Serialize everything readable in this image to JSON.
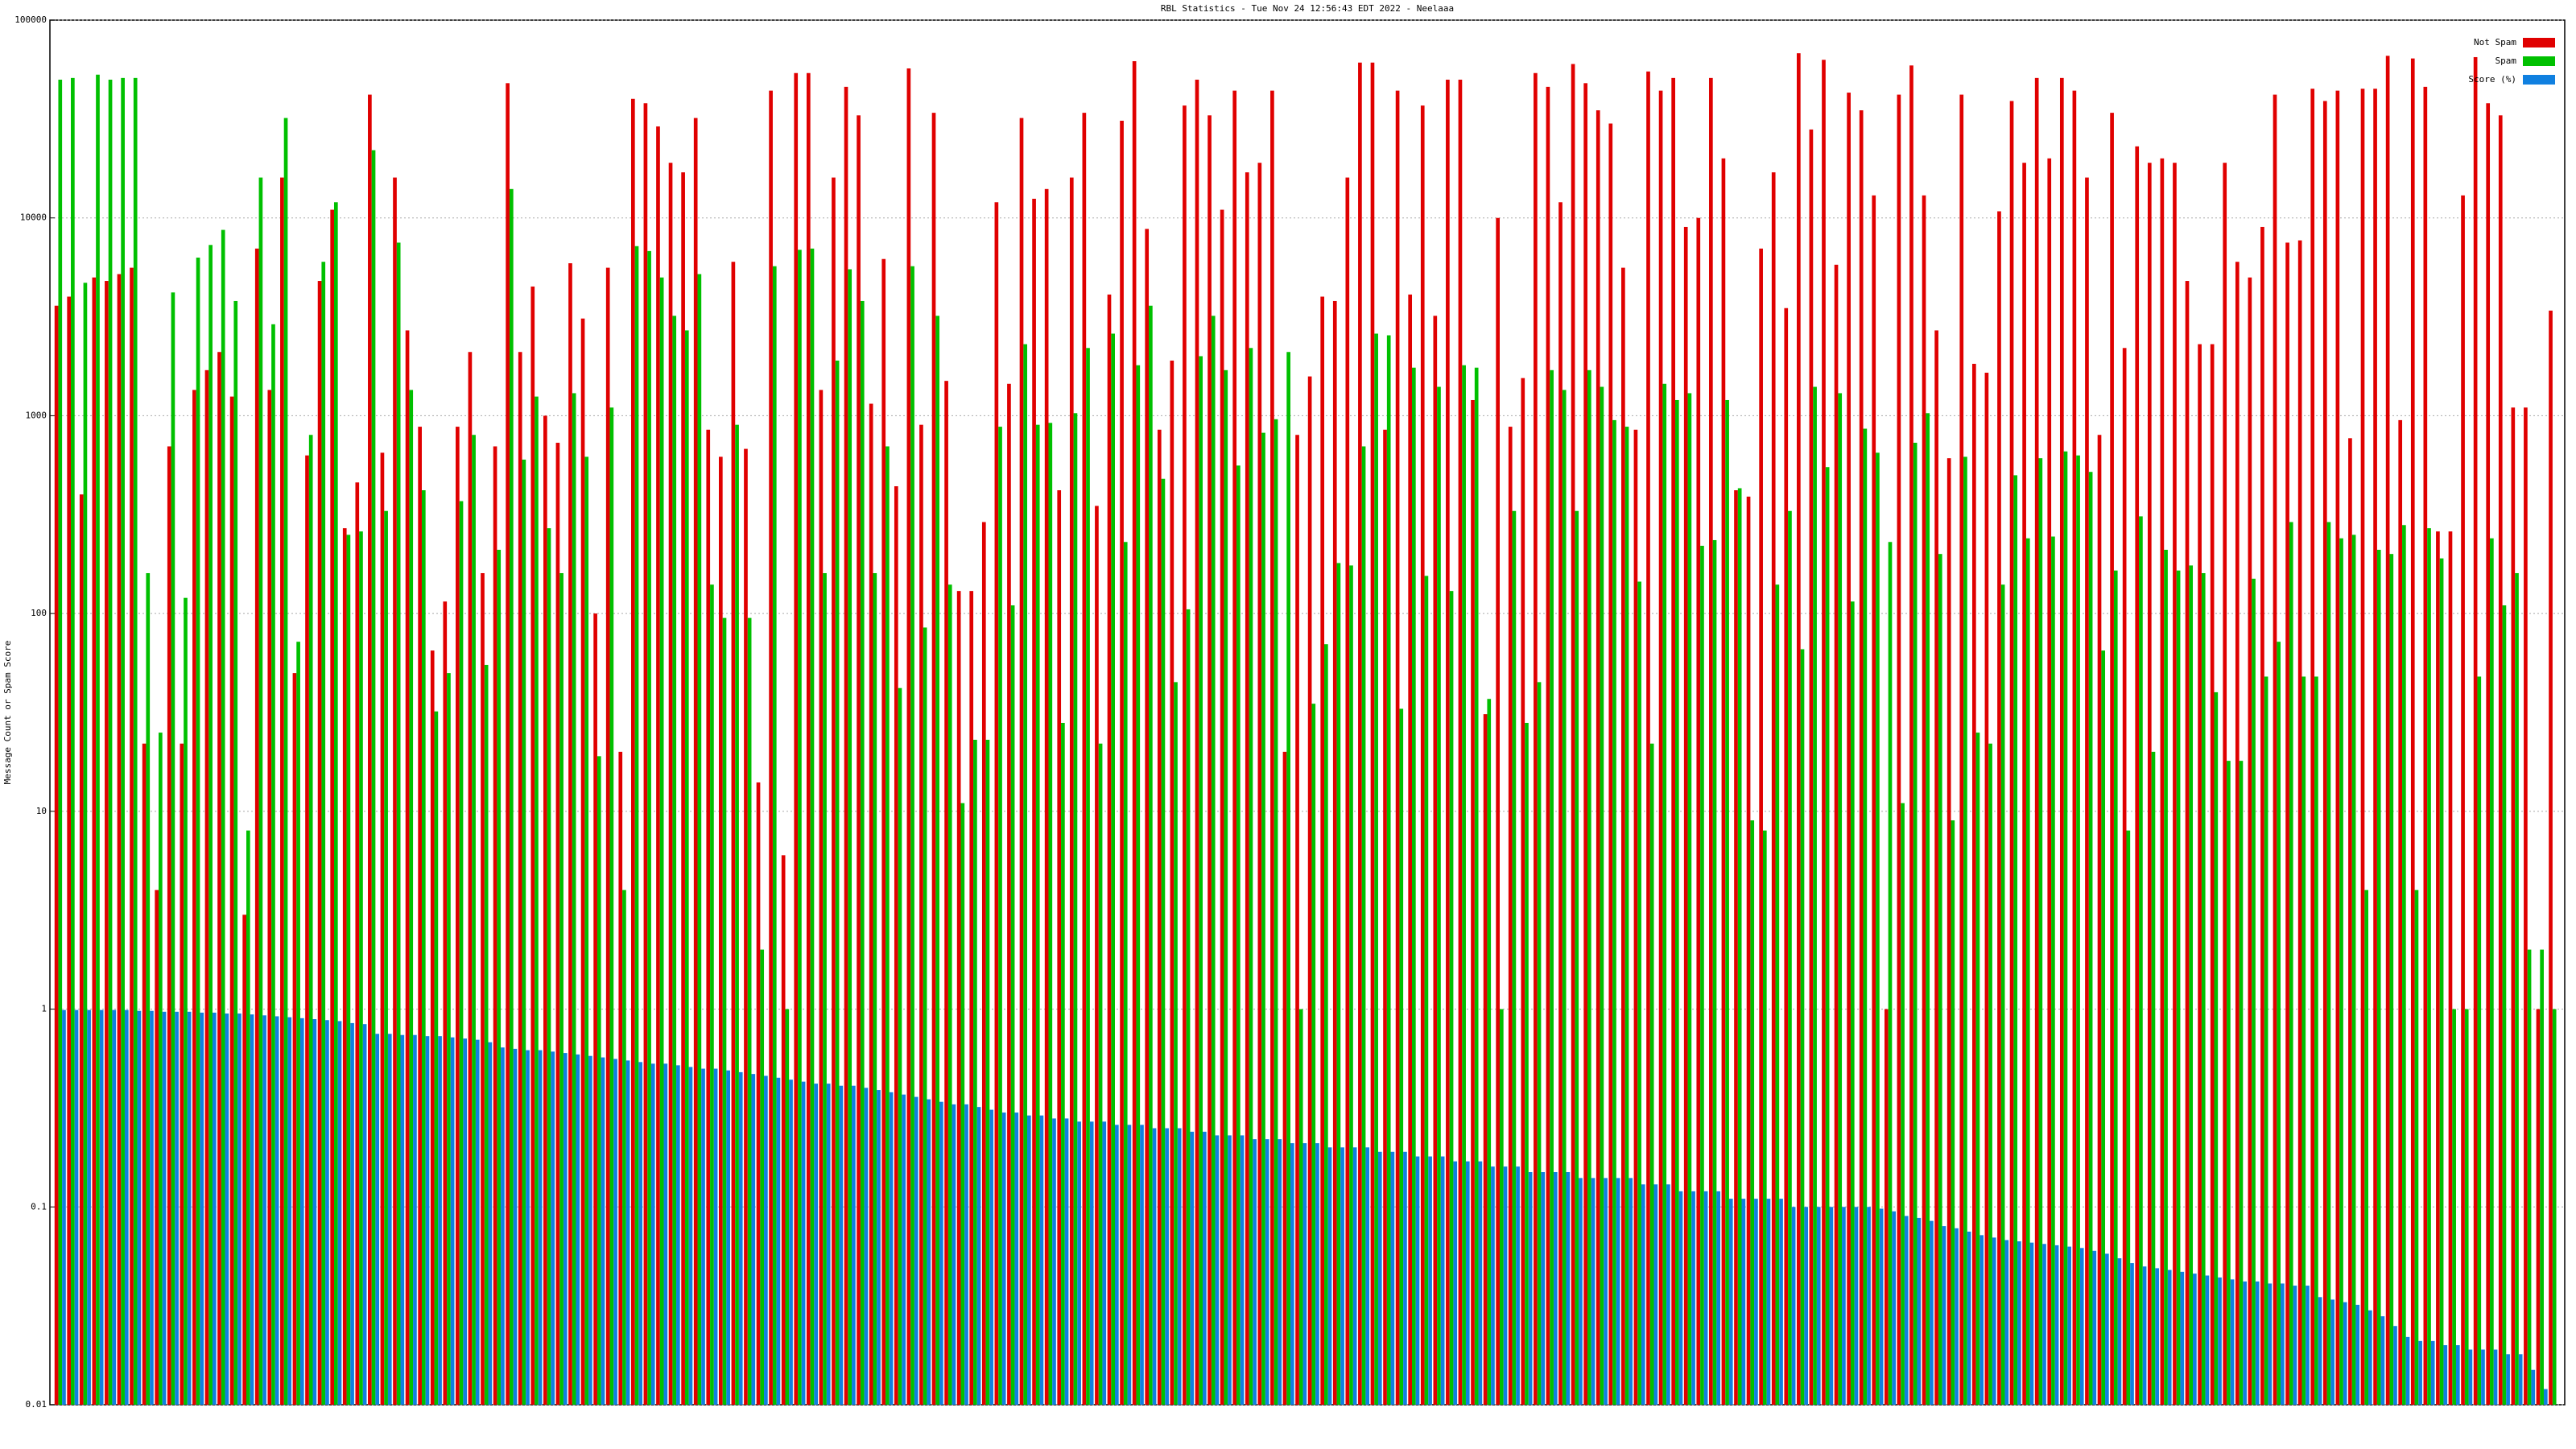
{
  "chart_data": {
    "type": "bar",
    "title": "RBL Statistics - Tue Nov 24 12:56:43 EDT 2022 - Neelaaa",
    "y_label": "Message Count or Spam Score",
    "log_scale": true,
    "grid": true,
    "legend": "upper right",
    "ylim": [
      0.01,
      100000
    ],
    "yticks": [
      0.01,
      0.1,
      1,
      10,
      100,
      1000,
      10000,
      100000
    ],
    "series": [
      {
        "name": "Not Spam",
        "color": "#e00000",
        "values": [
          3600,
          4000,
          400,
          5000,
          4800,
          5200,
          5600,
          22,
          4,
          700,
          22,
          1350,
          1700,
          2100,
          1250,
          3,
          7000,
          1350,
          16000,
          50,
          630,
          4800,
          11000,
          270,
          460,
          42000,
          650,
          16000,
          2700,
          880,
          65,
          115,
          880,
          2100,
          160,
          700,
          48000,
          2100,
          4500,
          1000,
          730,
          5900,
          3100,
          100,
          5600,
          20,
          40000,
          38000,
          29000,
          19000,
          17000,
          32000,
          850,
          620,
          6000,
          680,
          14,
          44000,
          6,
          54000,
          54000,
          1350,
          16000,
          46000,
          33000,
          1150,
          6200,
          440,
          57000,
          900,
          34000,
          1500,
          130,
          130,
          290,
          12000,
          1450,
          32000,
          12500,
          14000,
          420,
          16000,
          34000,
          350,
          4100,
          31000,
          62000,
          8800,
          850,
          1900,
          37000,
          50000,
          33000,
          11000,
          44000,
          17000,
          19000,
          44000,
          20,
          800,
          1580,
          4000,
          3800,
          16000,
          61000,
          61000,
          850,
          44000,
          4100,
          37000,
          3200,
          50000,
          50000,
          1200,
          31,
          10000,
          880,
          1550,
          54000,
          46000,
          12000,
          60000,
          48000,
          35000,
          30000,
          5600,
          850,
          55000,
          44000,
          51000,
          9000,
          10000,
          51000,
          20000,
          420,
          390,
          7000,
          17000,
          3500,
          68000,
          28000,
          63000,
          5800,
          43000,
          35000,
          13000,
          1,
          42000,
          59000,
          13000,
          2700,
          610,
          42000,
          1830,
          1650,
          10800,
          39000,
          19000,
          51000,
          20000,
          51000,
          44000,
          16000,
          800,
          34000,
          2200,
          23000,
          19000,
          20000,
          19000,
          4800,
          2300,
          2300,
          19000,
          6000,
          5000,
          9000,
          42000,
          7500,
          7700,
          45000,
          39000,
          44000,
          770,
          45000,
          45000,
          66000,
          950,
          64000,
          46000,
          260,
          260,
          13000,
          65000,
          38000,
          33000,
          1100,
          1100,
          1,
          3400
        ]
      },
      {
        "name": "Spam",
        "color": "#00c000",
        "values": [
          50000,
          51000,
          4700,
          53000,
          50000,
          51000,
          51000,
          160,
          25,
          4200,
          120,
          6300,
          7300,
          8700,
          3800,
          8,
          16000,
          2900,
          32000,
          72,
          800,
          6000,
          12000,
          250,
          260,
          22000,
          330,
          7500,
          1350,
          420,
          32,
          50,
          370,
          800,
          55,
          210,
          14000,
          600,
          1250,
          270,
          160,
          1300,
          620,
          19,
          1100,
          4,
          7200,
          6800,
          5000,
          3200,
          2700,
          5200,
          140,
          95,
          900,
          95,
          2,
          5700,
          1,
          6900,
          7000,
          160,
          1900,
          5500,
          3800,
          160,
          700,
          42,
          5700,
          85,
          3200,
          140,
          11,
          23,
          23,
          880,
          110,
          2300,
          900,
          920,
          28,
          1030,
          2200,
          22,
          2600,
          230,
          1800,
          3600,
          480,
          45,
          105,
          2000,
          3200,
          1700,
          560,
          2200,
          820,
          960,
          2100,
          1,
          35,
          70,
          180,
          175,
          700,
          2600,
          2550,
          33,
          1750,
          155,
          1400,
          130,
          1800,
          1750,
          37,
          1,
          330,
          28,
          45,
          1700,
          1350,
          330,
          1700,
          1400,
          950,
          880,
          145,
          22,
          1450,
          1200,
          1300,
          220,
          235,
          1200,
          430,
          9,
          8,
          140,
          330,
          66,
          1400,
          550,
          1300,
          115,
          860,
          650,
          230,
          11,
          730,
          1030,
          200,
          9,
          620,
          25,
          22,
          140,
          500,
          240,
          610,
          245,
          660,
          630,
          520,
          65,
          165,
          8,
          310,
          20,
          210,
          165,
          175,
          160,
          40,
          18,
          18,
          150,
          48,
          72,
          290,
          48,
          48,
          290,
          240,
          250,
          4,
          210,
          200,
          280,
          4,
          270,
          190,
          1,
          1,
          48,
          240,
          110,
          160,
          2,
          2,
          1
        ]
      },
      {
        "name": "Score (%)",
        "color": "#1080e0",
        "values": [
          0.99,
          0.99,
          0.99,
          0.99,
          0.99,
          0.99,
          0.98,
          0.98,
          0.97,
          0.97,
          0.97,
          0.96,
          0.96,
          0.95,
          0.95,
          0.94,
          0.93,
          0.92,
          0.91,
          0.9,
          0.89,
          0.88,
          0.87,
          0.85,
          0.84,
          0.75,
          0.75,
          0.74,
          0.74,
          0.73,
          0.73,
          0.72,
          0.71,
          0.7,
          0.68,
          0.64,
          0.63,
          0.62,
          0.62,
          0.61,
          0.6,
          0.59,
          0.58,
          0.57,
          0.56,
          0.55,
          0.54,
          0.53,
          0.53,
          0.52,
          0.51,
          0.5,
          0.5,
          0.49,
          0.48,
          0.47,
          0.46,
          0.45,
          0.44,
          0.43,
          0.42,
          0.42,
          0.41,
          0.41,
          0.4,
          0.39,
          0.38,
          0.37,
          0.36,
          0.35,
          0.34,
          0.33,
          0.33,
          0.32,
          0.31,
          0.3,
          0.3,
          0.29,
          0.29,
          0.28,
          0.28,
          0.27,
          0.27,
          0.27,
          0.26,
          0.26,
          0.26,
          0.25,
          0.25,
          0.25,
          0.24,
          0.24,
          0.23,
          0.23,
          0.23,
          0.22,
          0.22,
          0.22,
          0.21,
          0.21,
          0.21,
          0.2,
          0.2,
          0.2,
          0.2,
          0.19,
          0.19,
          0.19,
          0.18,
          0.18,
          0.18,
          0.17,
          0.17,
          0.17,
          0.16,
          0.16,
          0.16,
          0.15,
          0.15,
          0.15,
          0.15,
          0.14,
          0.14,
          0.14,
          0.14,
          0.14,
          0.13,
          0.13,
          0.13,
          0.12,
          0.12,
          0.12,
          0.12,
          0.11,
          0.11,
          0.11,
          0.11,
          0.11,
          0.1,
          0.1,
          0.1,
          0.1,
          0.1,
          0.1,
          0.1,
          0.098,
          0.095,
          0.09,
          0.088,
          0.085,
          0.08,
          0.078,
          0.075,
          0.072,
          0.07,
          0.068,
          0.067,
          0.066,
          0.065,
          0.064,
          0.063,
          0.062,
          0.06,
          0.058,
          0.055,
          0.052,
          0.05,
          0.049,
          0.048,
          0.047,
          0.046,
          0.045,
          0.044,
          0.043,
          0.042,
          0.042,
          0.041,
          0.041,
          0.04,
          0.04,
          0.035,
          0.034,
          0.033,
          0.032,
          0.03,
          0.028,
          0.025,
          0.022,
          0.021,
          0.021,
          0.02,
          0.02,
          0.019,
          0.019,
          0.019,
          0.018,
          0.018,
          0.015,
          0.012,
          0.01
        ]
      }
    ]
  }
}
